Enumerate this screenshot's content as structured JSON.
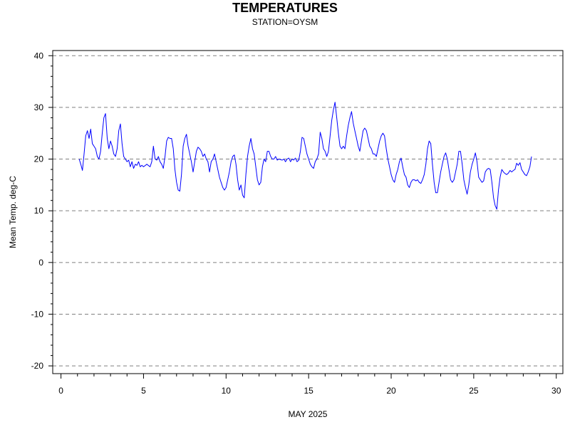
{
  "chart_data": {
    "type": "line",
    "title": "TEMPERATURES",
    "subtitle": "STATION=OYSM",
    "xlabel": "MAY 2025",
    "ylabel": "Mean Temp. deg-C",
    "xlim": [
      -0.5,
      30.4
    ],
    "ylim": [
      -21.5,
      41
    ],
    "xticks": [
      0,
      5,
      10,
      15,
      20,
      25,
      30
    ],
    "yticks": [
      -20,
      -10,
      0,
      10,
      20,
      30,
      40
    ],
    "grid": "horizontal dashed",
    "line_color": "#0000ff",
    "series": [
      {
        "points": [
          [
            1.1,
            20.0
          ],
          [
            1.2,
            19.0
          ],
          [
            1.3,
            17.8
          ],
          [
            1.4,
            21.0
          ],
          [
            1.5,
            24.5
          ],
          [
            1.6,
            25.5
          ],
          [
            1.7,
            24.0
          ],
          [
            1.8,
            25.8
          ],
          [
            1.9,
            23.0
          ],
          [
            2.0,
            22.5
          ],
          [
            2.1,
            22.0
          ],
          [
            2.2,
            20.5
          ],
          [
            2.3,
            20.0
          ],
          [
            2.4,
            21.5
          ],
          [
            2.5,
            25.0
          ],
          [
            2.6,
            28.0
          ],
          [
            2.7,
            28.8
          ],
          [
            2.8,
            24.0
          ],
          [
            2.9,
            22.0
          ],
          [
            3.0,
            23.5
          ],
          [
            3.1,
            22.5
          ],
          [
            3.2,
            21.0
          ],
          [
            3.3,
            20.5
          ],
          [
            3.4,
            22.0
          ],
          [
            3.5,
            25.5
          ],
          [
            3.6,
            26.8
          ],
          [
            3.7,
            23.0
          ],
          [
            3.8,
            20.5
          ],
          [
            3.9,
            20.0
          ],
          [
            4.0,
            19.5
          ],
          [
            4.1,
            19.8
          ],
          [
            4.2,
            18.5
          ],
          [
            4.3,
            19.5
          ],
          [
            4.4,
            18.2
          ],
          [
            4.5,
            19.0
          ],
          [
            4.6,
            18.8
          ],
          [
            4.7,
            19.5
          ],
          [
            4.8,
            18.5
          ],
          [
            4.9,
            18.8
          ],
          [
            5.0,
            18.5
          ],
          [
            5.2,
            19.0
          ],
          [
            5.4,
            18.5
          ],
          [
            5.5,
            19.5
          ],
          [
            5.6,
            22.5
          ],
          [
            5.7,
            20.0
          ],
          [
            5.8,
            19.8
          ],
          [
            5.9,
            20.5
          ],
          [
            6.0,
            19.5
          ],
          [
            6.1,
            19.0
          ],
          [
            6.2,
            18.2
          ],
          [
            6.3,
            20.5
          ],
          [
            6.4,
            23.5
          ],
          [
            6.5,
            24.2
          ],
          [
            6.6,
            24.0
          ],
          [
            6.7,
            24.0
          ],
          [
            6.8,
            22.0
          ],
          [
            6.9,
            18.0
          ],
          [
            7.0,
            15.5
          ],
          [
            7.1,
            14.0
          ],
          [
            7.2,
            13.8
          ],
          [
            7.3,
            17.0
          ],
          [
            7.4,
            22.5
          ],
          [
            7.5,
            24.0
          ],
          [
            7.6,
            24.8
          ],
          [
            7.7,
            22.5
          ],
          [
            7.8,
            21.0
          ],
          [
            7.9,
            19.5
          ],
          [
            8.0,
            17.5
          ],
          [
            8.1,
            19.5
          ],
          [
            8.2,
            21.5
          ],
          [
            8.3,
            22.3
          ],
          [
            8.4,
            22.0
          ],
          [
            8.5,
            21.5
          ],
          [
            8.6,
            20.5
          ],
          [
            8.7,
            21.0
          ],
          [
            8.8,
            20.0
          ],
          [
            8.9,
            19.5
          ],
          [
            9.0,
            17.5
          ],
          [
            9.1,
            19.5
          ],
          [
            9.2,
            20.0
          ],
          [
            9.3,
            21.0
          ],
          [
            9.4,
            19.5
          ],
          [
            9.5,
            18.0
          ],
          [
            9.6,
            16.5
          ],
          [
            9.7,
            15.5
          ],
          [
            9.8,
            14.5
          ],
          [
            9.9,
            14.0
          ],
          [
            10.0,
            14.5
          ],
          [
            10.1,
            16.0
          ],
          [
            10.2,
            17.5
          ],
          [
            10.3,
            19.5
          ],
          [
            10.4,
            20.5
          ],
          [
            10.5,
            20.8
          ],
          [
            10.6,
            19.0
          ],
          [
            10.7,
            16.0
          ],
          [
            10.8,
            14.0
          ],
          [
            10.9,
            15.0
          ],
          [
            11.0,
            13.0
          ],
          [
            11.1,
            12.5
          ],
          [
            11.2,
            17.0
          ],
          [
            11.3,
            20.5
          ],
          [
            11.4,
            22.5
          ],
          [
            11.5,
            24.0
          ],
          [
            11.6,
            22.0
          ],
          [
            11.7,
            21.0
          ],
          [
            11.8,
            18.5
          ],
          [
            11.9,
            16.0
          ],
          [
            12.0,
            15.0
          ],
          [
            12.1,
            15.5
          ],
          [
            12.2,
            18.5
          ],
          [
            12.3,
            20.0
          ],
          [
            12.4,
            19.5
          ],
          [
            12.5,
            21.5
          ],
          [
            12.6,
            21.5
          ],
          [
            12.7,
            20.5
          ],
          [
            12.8,
            20.0
          ],
          [
            12.9,
            20.0
          ],
          [
            13.0,
            20.5
          ],
          [
            13.1,
            19.8
          ],
          [
            13.2,
            20.0
          ],
          [
            13.4,
            19.8
          ],
          [
            13.5,
            20.0
          ],
          [
            13.6,
            19.5
          ],
          [
            13.7,
            20.0
          ],
          [
            13.8,
            20.2
          ],
          [
            13.9,
            19.5
          ],
          [
            14.0,
            20.0
          ],
          [
            14.1,
            19.8
          ],
          [
            14.2,
            20.2
          ],
          [
            14.3,
            19.5
          ],
          [
            14.4,
            19.8
          ],
          [
            14.5,
            21.5
          ],
          [
            14.6,
            24.2
          ],
          [
            14.7,
            24.0
          ],
          [
            14.8,
            22.5
          ],
          [
            14.9,
            21.0
          ],
          [
            15.0,
            20.0
          ],
          [
            15.1,
            19.0
          ],
          [
            15.2,
            18.5
          ],
          [
            15.3,
            18.2
          ],
          [
            15.4,
            19.5
          ],
          [
            15.5,
            20.0
          ],
          [
            15.6,
            21.0
          ],
          [
            15.7,
            25.2
          ],
          [
            15.8,
            24.0
          ],
          [
            15.9,
            22.0
          ],
          [
            16.0,
            21.5
          ],
          [
            16.1,
            20.5
          ],
          [
            16.2,
            21.5
          ],
          [
            16.3,
            24.5
          ],
          [
            16.4,
            27.5
          ],
          [
            16.5,
            29.5
          ],
          [
            16.6,
            31.0
          ],
          [
            16.7,
            28.0
          ],
          [
            16.8,
            25.0
          ],
          [
            16.9,
            22.5
          ],
          [
            17.0,
            22.0
          ],
          [
            17.1,
            22.5
          ],
          [
            17.2,
            22.0
          ],
          [
            17.3,
            24.5
          ],
          [
            17.4,
            26.5
          ],
          [
            17.5,
            28.0
          ],
          [
            17.6,
            29.2
          ],
          [
            17.7,
            27.0
          ],
          [
            17.8,
            25.5
          ],
          [
            17.9,
            24.0
          ],
          [
            18.0,
            22.5
          ],
          [
            18.1,
            21.5
          ],
          [
            18.2,
            23.5
          ],
          [
            18.3,
            25.5
          ],
          [
            18.4,
            26.0
          ],
          [
            18.5,
            25.5
          ],
          [
            18.6,
            24.0
          ],
          [
            18.7,
            22.5
          ],
          [
            18.8,
            22.0
          ],
          [
            18.9,
            21.0
          ],
          [
            19.0,
            21.0
          ],
          [
            19.1,
            20.5
          ],
          [
            19.2,
            22.0
          ],
          [
            19.3,
            23.5
          ],
          [
            19.4,
            24.5
          ],
          [
            19.5,
            25.0
          ],
          [
            19.6,
            24.5
          ],
          [
            19.7,
            22.0
          ],
          [
            19.8,
            20.0
          ],
          [
            19.9,
            18.5
          ],
          [
            20.0,
            17.0
          ],
          [
            20.1,
            16.0
          ],
          [
            20.2,
            15.5
          ],
          [
            20.3,
            17.0
          ],
          [
            20.4,
            18.0
          ],
          [
            20.5,
            19.5
          ],
          [
            20.6,
            20.2
          ],
          [
            20.7,
            18.5
          ],
          [
            20.8,
            17.0
          ],
          [
            20.9,
            16.5
          ],
          [
            21.0,
            15.0
          ],
          [
            21.1,
            14.5
          ],
          [
            21.2,
            15.5
          ],
          [
            21.3,
            16.0
          ],
          [
            21.4,
            16.0
          ],
          [
            21.5,
            15.8
          ],
          [
            21.6,
            16.0
          ],
          [
            21.7,
            15.5
          ],
          [
            21.8,
            15.3
          ],
          [
            21.9,
            16.0
          ],
          [
            22.0,
            17.0
          ],
          [
            22.1,
            19.0
          ],
          [
            22.2,
            22.0
          ],
          [
            22.3,
            23.5
          ],
          [
            22.4,
            23.0
          ],
          [
            22.5,
            19.0
          ],
          [
            22.6,
            15.5
          ],
          [
            22.7,
            13.5
          ],
          [
            22.8,
            13.5
          ],
          [
            22.9,
            15.5
          ],
          [
            23.0,
            17.5
          ],
          [
            23.1,
            19.0
          ],
          [
            23.2,
            20.5
          ],
          [
            23.3,
            21.2
          ],
          [
            23.4,
            20.0
          ],
          [
            23.5,
            18.0
          ],
          [
            23.6,
            16.0
          ],
          [
            23.7,
            15.5
          ],
          [
            23.8,
            16.0
          ],
          [
            23.9,
            17.5
          ],
          [
            24.0,
            19.0
          ],
          [
            24.1,
            21.5
          ],
          [
            24.2,
            21.5
          ],
          [
            24.3,
            19.0
          ],
          [
            24.4,
            16.0
          ],
          [
            24.5,
            14.5
          ],
          [
            24.6,
            13.2
          ],
          [
            24.7,
            15.0
          ],
          [
            24.8,
            17.5
          ],
          [
            24.9,
            19.0
          ],
          [
            25.0,
            20.0
          ],
          [
            25.1,
            21.2
          ],
          [
            25.2,
            19.5
          ],
          [
            25.3,
            16.5
          ],
          [
            25.4,
            16.0
          ],
          [
            25.5,
            15.5
          ],
          [
            25.6,
            15.8
          ],
          [
            25.7,
            17.5
          ],
          [
            25.8,
            18.0
          ],
          [
            25.9,
            18.2
          ],
          [
            26.0,
            18.0
          ],
          [
            26.1,
            15.5
          ],
          [
            26.2,
            12.5
          ],
          [
            26.3,
            11.0
          ],
          [
            26.4,
            10.3
          ],
          [
            26.5,
            14.0
          ],
          [
            26.6,
            16.5
          ],
          [
            26.7,
            18.0
          ],
          [
            26.8,
            17.5
          ],
          [
            26.9,
            17.2
          ],
          [
            27.0,
            17.0
          ],
          [
            27.1,
            17.3
          ],
          [
            27.2,
            17.8
          ],
          [
            27.3,
            17.5
          ],
          [
            27.4,
            17.8
          ],
          [
            27.5,
            18.0
          ],
          [
            27.6,
            19.2
          ],
          [
            27.7,
            18.8
          ],
          [
            27.8,
            19.3
          ],
          [
            27.9,
            18.0
          ],
          [
            28.0,
            17.5
          ],
          [
            28.1,
            17.0
          ],
          [
            28.2,
            16.8
          ],
          [
            28.3,
            17.5
          ],
          [
            28.4,
            18.5
          ],
          [
            28.5,
            20.5
          ]
        ]
      }
    ]
  }
}
